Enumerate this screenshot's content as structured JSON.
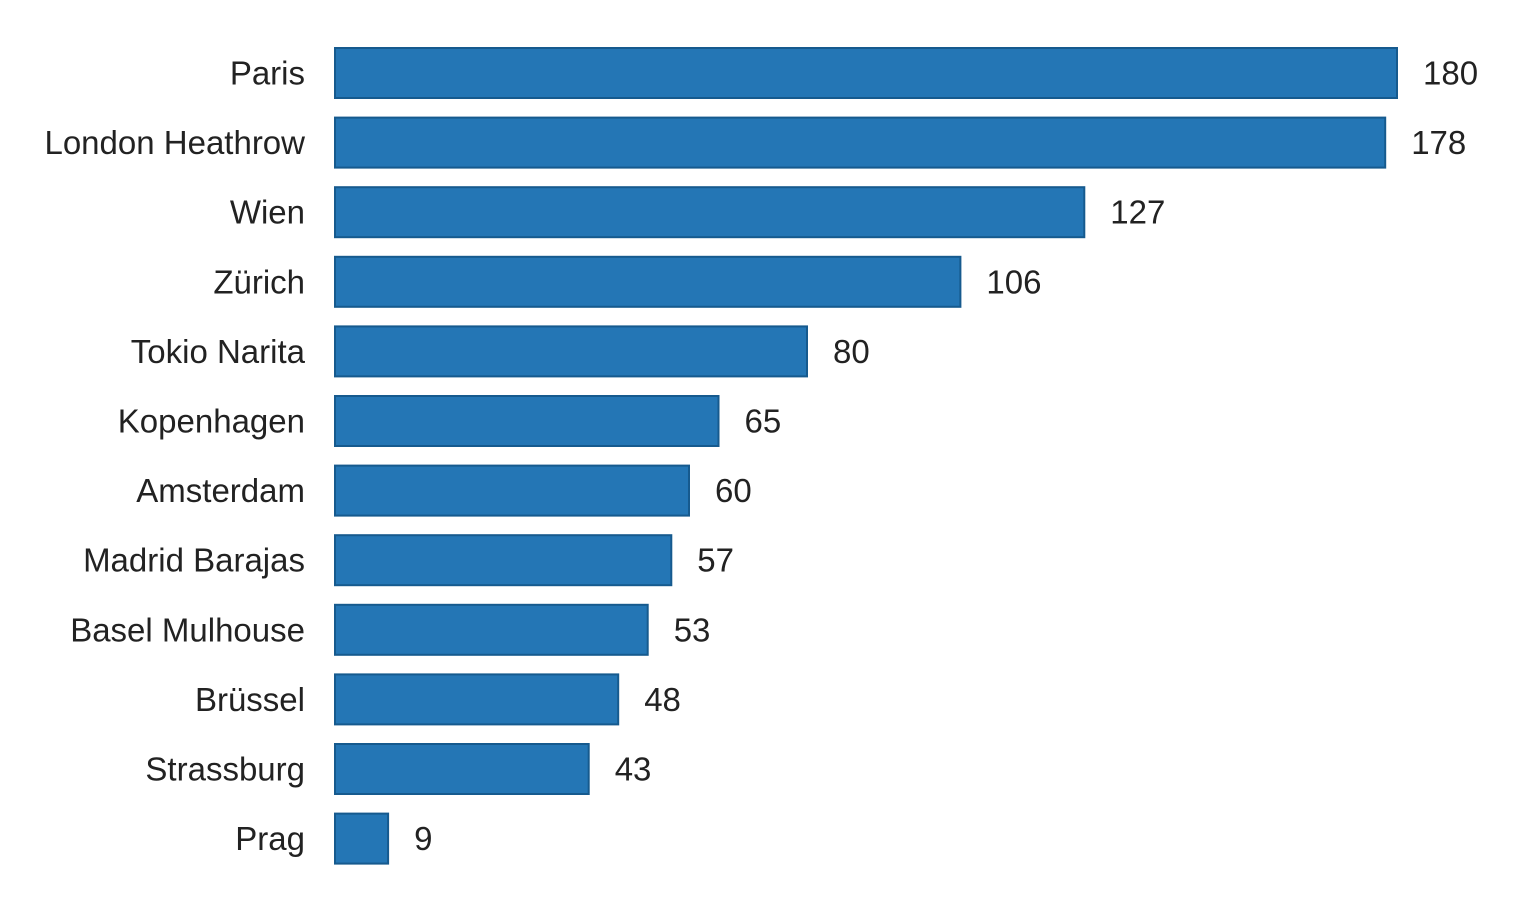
{
  "chart_data": {
    "type": "bar",
    "orientation": "horizontal",
    "title": "",
    "xlabel": "",
    "ylabel": "",
    "categories": [
      "Paris",
      "London Heathrow",
      "Wien",
      "Zürich",
      "Tokio Narita",
      "Kopenhagen",
      "Amsterdam",
      "Madrid Barajas",
      "Basel Mulhouse",
      "Brüssel",
      "Strassburg",
      "Prag"
    ],
    "values": [
      180,
      178,
      127,
      106,
      80,
      65,
      60,
      57,
      53,
      48,
      43,
      9
    ],
    "xlim": [
      0,
      180
    ],
    "grid": false,
    "legend": "none",
    "data_labels": true,
    "colors": {
      "bar": "#2476b5",
      "text": "#222222"
    }
  }
}
